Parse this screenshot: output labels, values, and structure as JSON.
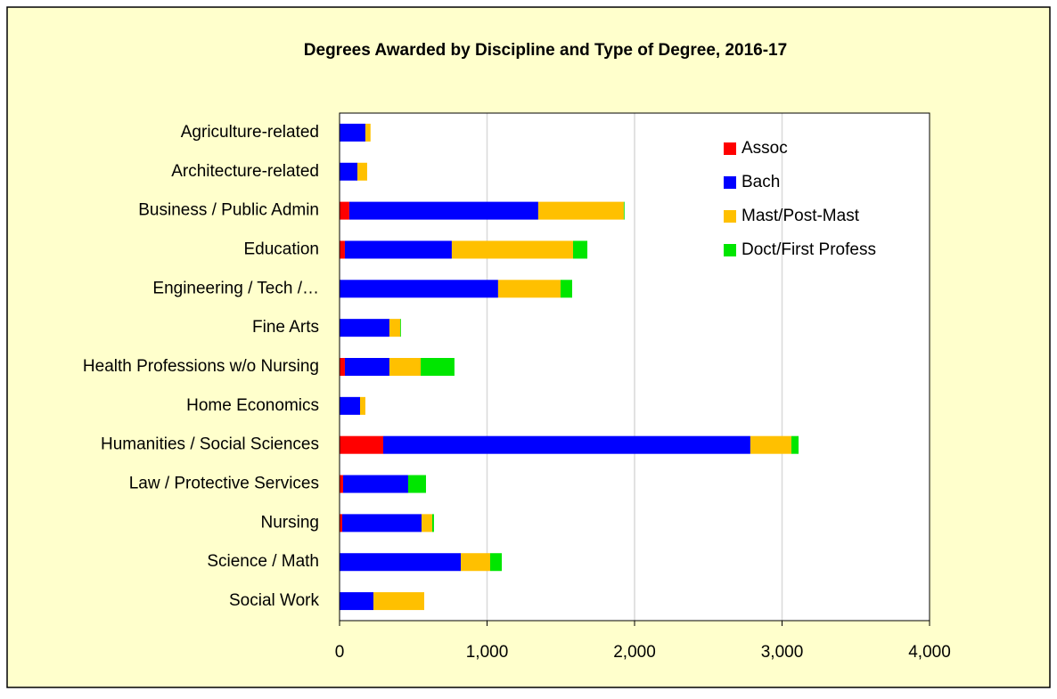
{
  "chart_data": {
    "type": "stacked_barh",
    "title": "Degrees Awarded by Discipline and Type of Degree, 2016-17",
    "categories": [
      "Agriculture-related",
      "Architecture-related",
      "Business / Public Admin",
      "Education",
      "Engineering / Tech /…",
      "Fine Arts",
      "Health Professions w/o Nursing",
      "Home Economics",
      "Humanities / Social Sciences",
      "Law / Protective Services",
      "Nursing",
      "Science / Math",
      "Social Work"
    ],
    "series": [
      {
        "name": "Assoc",
        "color": "#ff0000",
        "values": [
          0,
          0,
          66,
          36,
          0,
          0,
          36,
          0,
          296,
          24,
          18,
          0,
          0
        ]
      },
      {
        "name": "Bach",
        "color": "#0000ff",
        "values": [
          175,
          121,
          1281,
          725,
          1075,
          338,
          302,
          139,
          2489,
          441,
          538,
          822,
          230
        ]
      },
      {
        "name": "Mast/Post-Mast",
        "color": "#ffc000",
        "values": [
          35,
          66,
          580,
          822,
          423,
          73,
          212,
          36,
          278,
          0,
          72,
          199,
          344
        ]
      },
      {
        "name": "Doct/First Profess",
        "color": "#00e600",
        "values": [
          0,
          0,
          5,
          97,
          79,
          5,
          229,
          0,
          49,
          121,
          12,
          79,
          0
        ]
      }
    ],
    "xlim": [
      0,
      4000
    ],
    "xticks": [
      0,
      {
        "value": 1000,
        "label": "1,000"
      },
      {
        "value": 2000,
        "label": "2,000"
      },
      {
        "value": 3000,
        "label": "3,000"
      },
      {
        "value": 4000,
        "label": "4,000"
      }
    ],
    "grid": true,
    "legend": "upper right"
  }
}
